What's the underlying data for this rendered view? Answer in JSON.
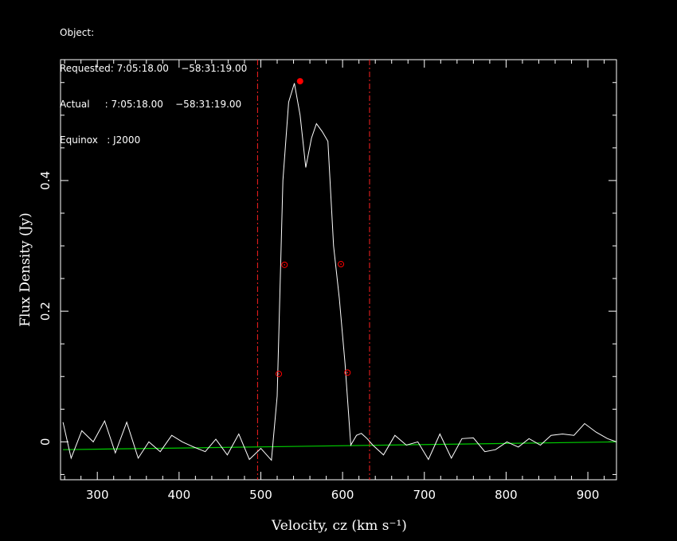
{
  "header": {
    "object_line": "Object:",
    "requested_line": "Requested: 7:05:18.00    −58:31:19.00",
    "actual_line": "Actual     : 7:05:18.00    −58:31:19.00",
    "equinox_line": "Equinox   : J2000"
  },
  "colors": {
    "background": "#000000",
    "spectrum": "#ffffff",
    "baseline": "#00cc00",
    "markers": "#ff0000",
    "velocity_limits": "#ff2020"
  },
  "chart_data": {
    "type": "line",
    "title": "",
    "xlabel": "Velocity, cz (km s⁻¹)",
    "ylabel": "Flux Density (Jy)",
    "xlim": [
      255,
      935
    ],
    "ylim": [
      -0.058,
      0.585
    ],
    "x_ticks": [
      300,
      400,
      500,
      600,
      700,
      800,
      900
    ],
    "x_tick_labels": [
      "300",
      "400",
      "500",
      "600",
      "700",
      "800",
      "900"
    ],
    "y_ticks": [
      0,
      0.2,
      0.4
    ],
    "y_tick_labels": [
      "0",
      "0.2",
      "0.4"
    ],
    "series": [
      {
        "kind": "spectrum",
        "x": [
          258,
          268,
          281,
          295,
          309,
          322,
          336,
          350,
          363,
          377,
          391,
          404,
          418,
          432,
          445,
          459,
          473,
          486,
          500,
          513,
          520,
          527,
          534,
          541,
          548,
          555,
          562,
          568,
          575,
          582,
          589,
          596,
          603,
          610,
          617,
          623,
          630,
          637,
          650,
          664,
          678,
          692,
          705,
          719,
          733,
          746,
          760,
          774,
          787,
          801,
          815,
          828,
          842,
          855,
          869,
          883,
          896,
          910,
          924,
          935
        ],
        "y": [
          0.03,
          -0.025,
          0.017,
          0,
          0.032,
          -0.017,
          0.03,
          -0.025,
          0.0,
          -0.015,
          0.01,
          0.0,
          -0.008,
          -0.015,
          0.004,
          -0.02,
          0.012,
          -0.027,
          -0.01,
          -0.028,
          0.07,
          0.4,
          0.52,
          0.549,
          0.5,
          0.42,
          0.465,
          0.487,
          0.475,
          0.46,
          0.3,
          0.22,
          0.12,
          -0.005,
          0.01,
          0.013,
          0.005,
          -0.005,
          -0.02,
          0.01,
          -0.005,
          0.0,
          -0.027,
          0.012,
          -0.025,
          0.005,
          0.006,
          -0.015,
          -0.012,
          0.0,
          -0.008,
          0.005,
          -0.005,
          0.01,
          0.012,
          0.01,
          0.028,
          0.015,
          0.005,
          0.0
        ]
      },
      {
        "kind": "baseline_fit",
        "x": [
          258,
          935
        ],
        "y": [
          -0.012,
          0.0
        ]
      }
    ],
    "peak_marker": {
      "x": 548,
      "y": 0.552
    },
    "width_markers": [
      {
        "x": 522,
        "y": 0.104
      },
      {
        "x": 529,
        "y": 0.271
      },
      {
        "x": 598,
        "y": 0.272
      },
      {
        "x": 606,
        "y": 0.106
      }
    ],
    "velocity_limits": [
      496,
      633
    ],
    "grid": false,
    "legend": "none"
  }
}
